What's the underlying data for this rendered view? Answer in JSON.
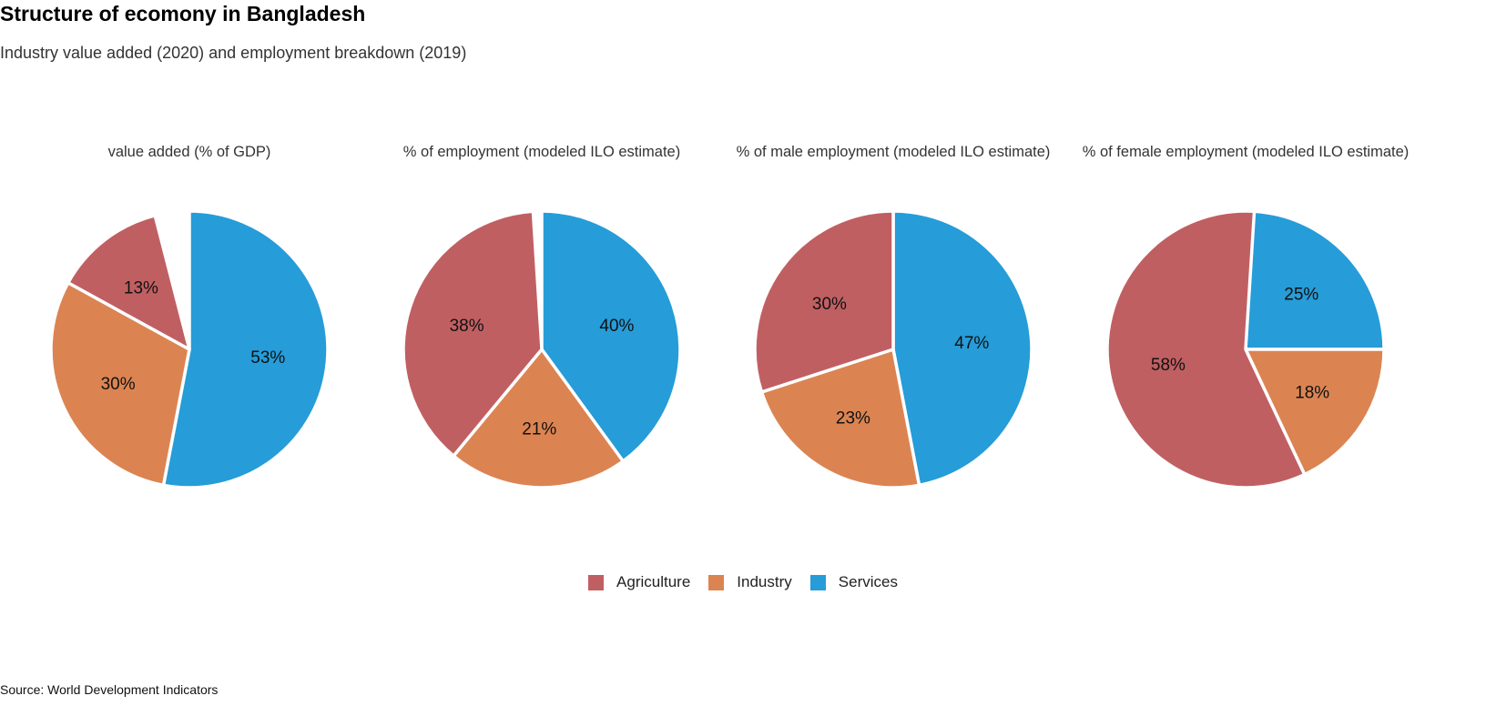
{
  "title": "Structure of ecomony in Bangladesh",
  "subtitle": "Industry value added (2020) and employment breakdown (2019)",
  "source": "Source: World Development Indicators",
  "colors": {
    "Agriculture": "#c05f62",
    "Industry": "#db8452",
    "Services": "#269cd8"
  },
  "legend": [
    {
      "label": "Agriculture",
      "color": "#c05f62"
    },
    {
      "label": "Industry",
      "color": "#db8452"
    },
    {
      "label": "Services",
      "color": "#269cd8"
    }
  ],
  "chart_data": [
    {
      "type": "pie",
      "title": "value added (% of GDP)",
      "slices": [
        {
          "name": "Services",
          "value": 53,
          "label": "53%"
        },
        {
          "name": "Industry",
          "value": 30,
          "label": "30%"
        },
        {
          "name": "Agriculture",
          "value": 13,
          "label": "13%"
        }
      ]
    },
    {
      "type": "pie",
      "title": "% of employment (modeled ILO estimate)",
      "slices": [
        {
          "name": "Services",
          "value": 40,
          "label": "40%"
        },
        {
          "name": "Industry",
          "value": 21,
          "label": "21%"
        },
        {
          "name": "Agriculture",
          "value": 38,
          "label": "38%"
        }
      ]
    },
    {
      "type": "pie",
      "title": "% of male employment (modeled ILO estimate)",
      "slices": [
        {
          "name": "Services",
          "value": 47,
          "label": "47%"
        },
        {
          "name": "Industry",
          "value": 23,
          "label": "23%"
        },
        {
          "name": "Agriculture",
          "value": 30,
          "label": "30%"
        }
      ]
    },
    {
      "type": "pie",
      "title": "% of female employment (modeled ILO estimate)",
      "slices": [
        {
          "name": "Services",
          "value": 25,
          "label": "25%"
        },
        {
          "name": "Industry",
          "value": 18,
          "label": "18%"
        },
        {
          "name": "Agriculture",
          "value": 58,
          "label": "58%"
        }
      ]
    }
  ]
}
